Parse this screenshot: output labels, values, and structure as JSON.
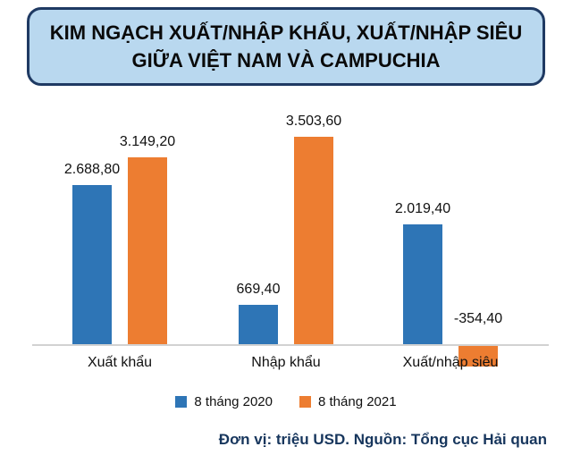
{
  "title": {
    "lines": [
      "KIM NGẠCH XUẤT/NHẬP KHẨU, XUẤT/NHẬP SIÊU",
      "GIỮA VIỆT NAM VÀ CAMPUCHIA"
    ]
  },
  "chart_data": {
    "type": "bar",
    "title": "KIM NGẠCH XUẤT/NHẬP KHẨU, XUẤT/NHẬP SIÊU GIỮA VIỆT NAM VÀ CAMPUCHIA",
    "unit": "triệu USD",
    "categories": [
      "Xuất khẩu",
      "Nhập khẩu",
      "Xuất/nhập siêu"
    ],
    "series": [
      {
        "name": "8 tháng 2020",
        "color": "#2E75B6",
        "values": [
          2688.8,
          669.4,
          2019.4
        ],
        "labels": [
          "2.688,80",
          "669,40",
          "2.019,40"
        ]
      },
      {
        "name": "8 tháng 2021",
        "color": "#ED7D31",
        "values": [
          3149.2,
          3503.6,
          -354.4
        ],
        "labels": [
          "3.149,20",
          "3.503,60",
          "-354,40"
        ]
      }
    ],
    "legend_position": "bottom",
    "grid": false,
    "ylim": [
      -500,
      3800
    ]
  },
  "footer": {
    "text": "Đơn vị: triệu USD. Nguồn: Tổng cục Hải quan"
  }
}
